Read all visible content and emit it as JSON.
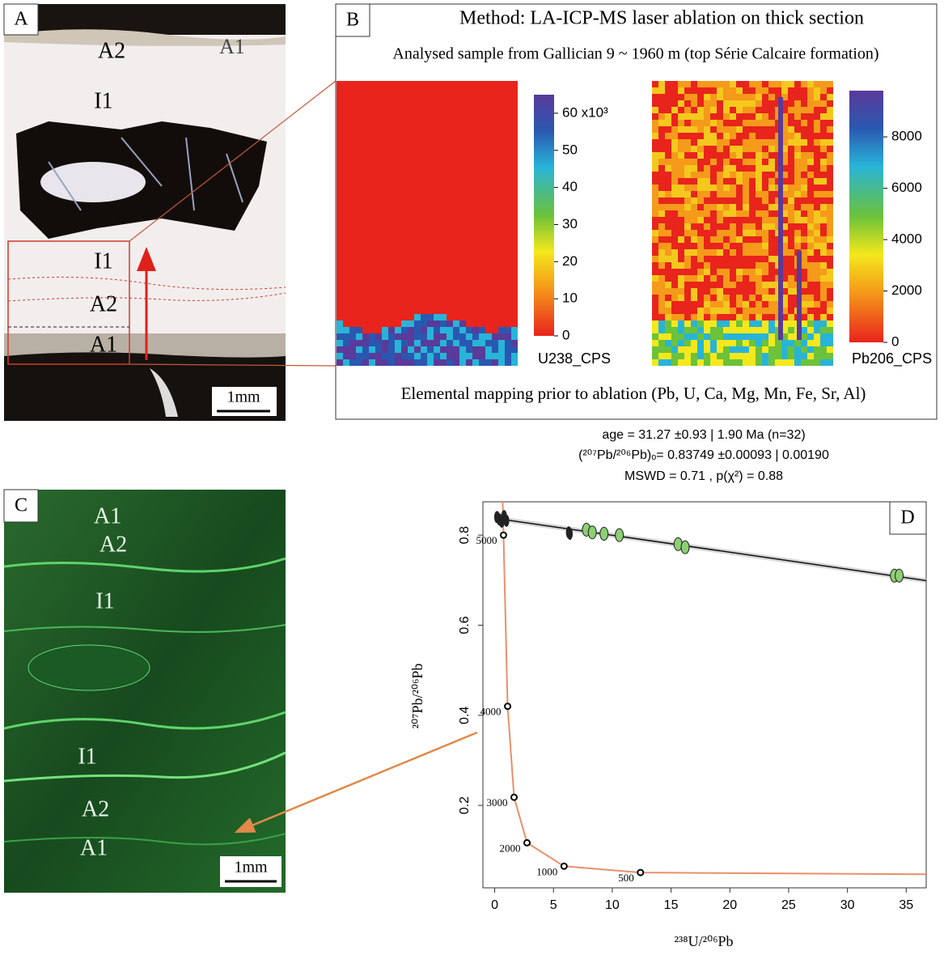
{
  "panel_a": {
    "letter": "A",
    "labels": [
      "A2",
      "A1",
      "I1",
      "I1",
      "A2",
      "A1"
    ],
    "scale_bar": "1mm"
  },
  "panel_b": {
    "letter": "B",
    "method": "Method: LA-ICP-MS laser ablation on thick section",
    "sample": "Analysed sample from Gallician 9 ~ 1960 m (top Série Calcaire formation)",
    "colorbars": [
      {
        "label": "U238_CPS",
        "lim": [
          0,
          65
        ],
        "ticks": [
          0,
          10,
          20,
          30,
          40,
          50,
          {
            "value": 60,
            "label": "60 x10³"
          }
        ]
      },
      {
        "label": "Pb206_CPS",
        "lim": [
          0,
          9800
        ],
        "ticks": [
          0,
          2000,
          4000,
          6000,
          8000
        ]
      }
    ],
    "caption": "Elemental mapping prior to ablation (Pb, U, Ca, Mg, Mn, Fe, Sr, Al)"
  },
  "panel_c": {
    "letter": "C",
    "labels": [
      "A1",
      "A2",
      "I1",
      "I1",
      "A2",
      "A1"
    ],
    "scale_bar": "1mm"
  },
  "chart_data": {
    "type": "scatter",
    "letter": "D",
    "annotations": [
      "age = 31.27 ±0.93 | 1.90 Ma (n=32)",
      "(²⁰⁷Pb/²⁰⁶Pb)ₒ= 0.83749 ±0.00093 | 0.00190",
      "MSWD = 0.71 , p(χ²) = 0.88"
    ],
    "xlabel": "²³⁸U/²⁰⁶Pb",
    "ylabel": "²⁰⁷Pb/²⁰⁶Pb",
    "xlim": [
      -1,
      36.7
    ],
    "ylim": [
      0.017,
      0.874
    ],
    "xticks": [
      0,
      5,
      10,
      15,
      20,
      25,
      30,
      35
    ],
    "yticks": [
      0.2,
      0.4,
      0.6,
      0.8
    ],
    "series": [
      {
        "color": "#222222",
        "x": [
          0.2,
          0.4,
          0.6,
          0.8,
          1.0,
          6.3,
          6.4
        ],
        "y": [
          0.84,
          0.835,
          0.83,
          0.842,
          0.832,
          0.806,
          0.803
        ]
      },
      {
        "color": "#8ccf74",
        "x": [
          7.8,
          8.3,
          9.3,
          10.6,
          15.6,
          16.2,
          34.0,
          34.4
        ],
        "y": [
          0.812,
          0.806,
          0.803,
          0.8,
          0.78,
          0.773,
          0.71,
          0.71
        ]
      }
    ],
    "regression": {
      "color": "#111111",
      "x": [
        0,
        36.7
      ],
      "y": [
        0.8375,
        0.699
      ]
    },
    "concordia": {
      "color": "#e8906a",
      "x": [
        0.68,
        0.75,
        1.1,
        1.65,
        2.75,
        5.9,
        12.4,
        36.7
      ],
      "y": [
        0.874,
        0.8,
        0.42,
        0.218,
        0.117,
        0.065,
        0.051,
        0.047
      ]
    },
    "concordia_ages": {
      "labels": [
        5000,
        4000,
        3000,
        2000,
        1000,
        500
      ],
      "x": [
        0.75,
        1.1,
        1.65,
        2.75,
        5.9,
        12.4
      ],
      "y": [
        0.8,
        0.42,
        0.218,
        0.117,
        0.065,
        0.051
      ]
    }
  }
}
